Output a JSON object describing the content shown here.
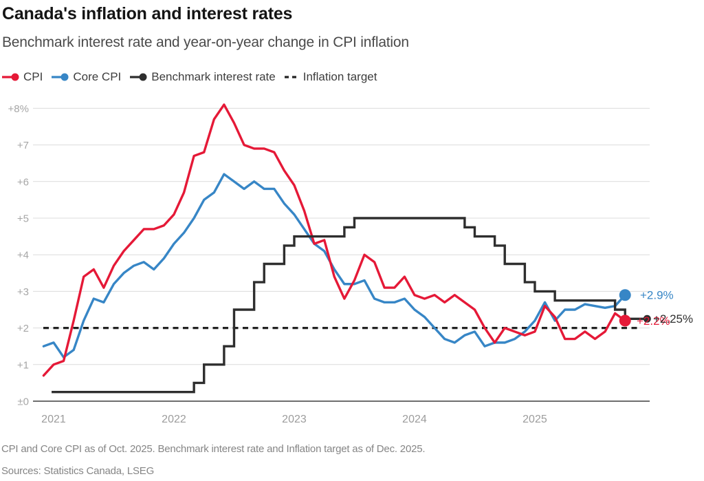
{
  "header": {
    "title": "Canada's inflation and interest rates",
    "subtitle": "Benchmark interest rate and year-on-year change in CPI inflation"
  },
  "footnote": "CPI and Core CPI as of Oct. 2025. Benchmark interest rate and Inflation target as of Dec. 2025.",
  "sources": "Sources: Statistics Canada, LSEG",
  "chart_data": {
    "type": "line",
    "frequency": "monthly",
    "x_start": "Dec 2020",
    "x_end_lines": "Oct 2025",
    "x_end_benchmark": "Dec 2025",
    "ylim": [
      0,
      8
    ],
    "grid": true,
    "y_ticks": [
      {
        "value": 8,
        "label": "+8%"
      },
      {
        "value": 7,
        "label": "+7"
      },
      {
        "value": 6,
        "label": "+6"
      },
      {
        "value": 5,
        "label": "+5"
      },
      {
        "value": 4,
        "label": "+4"
      },
      {
        "value": 3,
        "label": "+3"
      },
      {
        "value": 2,
        "label": "+2"
      },
      {
        "value": 1,
        "label": "+1"
      },
      {
        "value": 0,
        "label": "±0"
      }
    ],
    "x_ticks": [
      {
        "m": 1,
        "label": "2021"
      },
      {
        "m": 13,
        "label": "2022"
      },
      {
        "m": 25,
        "label": "2023"
      },
      {
        "m": 37,
        "label": "2024"
      },
      {
        "m": 49,
        "label": "2025"
      }
    ],
    "series": [
      {
        "name": "CPI",
        "color": "#e51937",
        "end_label": "+2.2%",
        "end_value": 2.2,
        "values": [
          0.7,
          1.0,
          1.1,
          2.2,
          3.4,
          3.6,
          3.1,
          3.7,
          4.1,
          4.4,
          4.7,
          4.7,
          4.8,
          5.1,
          5.7,
          6.7,
          6.8,
          7.7,
          8.1,
          7.6,
          7.0,
          6.9,
          6.9,
          6.8,
          6.3,
          5.9,
          5.2,
          4.3,
          4.4,
          3.4,
          2.8,
          3.3,
          4.0,
          3.8,
          3.1,
          3.1,
          3.4,
          2.9,
          2.8,
          2.9,
          2.7,
          2.9,
          2.7,
          2.5,
          2.0,
          1.6,
          2.0,
          1.9,
          1.8,
          1.9,
          2.6,
          2.3,
          1.7,
          1.7,
          1.9,
          1.7,
          1.9,
          2.4,
          2.2
        ]
      },
      {
        "name": "Core CPI",
        "color": "#3786c6",
        "end_label": "+2.9%",
        "end_value": 2.9,
        "values": [
          1.5,
          1.6,
          1.2,
          1.4,
          2.2,
          2.8,
          2.7,
          3.2,
          3.5,
          3.7,
          3.8,
          3.6,
          3.9,
          4.3,
          4.6,
          5.0,
          5.5,
          5.7,
          6.2,
          6.0,
          5.8,
          6.0,
          5.8,
          5.8,
          5.4,
          5.1,
          4.7,
          4.3,
          4.1,
          3.6,
          3.2,
          3.2,
          3.3,
          2.8,
          2.7,
          2.7,
          2.8,
          2.5,
          2.3,
          2.0,
          1.7,
          1.6,
          1.8,
          1.9,
          1.5,
          1.6,
          1.6,
          1.7,
          1.9,
          2.2,
          2.7,
          2.2,
          2.5,
          2.5,
          2.65,
          2.6,
          2.55,
          2.6,
          2.9
        ]
      },
      {
        "name": "Benchmark interest rate",
        "color": "#2e2e2e",
        "end_label": "+2.25%",
        "end_value": 2.25,
        "steps": [
          [
            0.8,
            0.25
          ],
          [
            15,
            0.5
          ],
          [
            16,
            1.0
          ],
          [
            18,
            1.5
          ],
          [
            19,
            2.5
          ],
          [
            21,
            3.25
          ],
          [
            22,
            3.75
          ],
          [
            24,
            4.25
          ],
          [
            25,
            4.5
          ],
          [
            30,
            4.75
          ],
          [
            31,
            5.0
          ],
          [
            42,
            4.75
          ],
          [
            43,
            4.5
          ],
          [
            45,
            4.25
          ],
          [
            46,
            3.75
          ],
          [
            48,
            3.25
          ],
          [
            49,
            3.0
          ],
          [
            51,
            2.75
          ],
          [
            57,
            2.5
          ],
          [
            58,
            2.25
          ],
          [
            60.2,
            2.25
          ]
        ]
      },
      {
        "name": "Inflation target",
        "color": "#232323",
        "style": "dashed",
        "value": 2.0
      }
    ]
  }
}
